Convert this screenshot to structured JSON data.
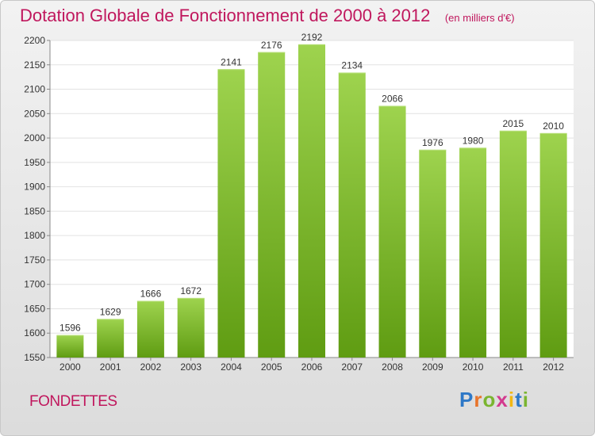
{
  "chart_data": {
    "type": "bar",
    "title": "Dotation Globale de Fonctionnement de 2000 à 2012",
    "unit_note": "(en milliers d'€)",
    "categories": [
      "2000",
      "2001",
      "2002",
      "2003",
      "2004",
      "2005",
      "2006",
      "2007",
      "2008",
      "2009",
      "2010",
      "2011",
      "2012"
    ],
    "values": [
      1596,
      1629,
      1666,
      1672,
      2141,
      2176,
      2192,
      2134,
      2066,
      1976,
      1980,
      2015,
      2010
    ],
    "ylim": [
      1550,
      2200
    ],
    "yticks": [
      1550,
      1600,
      1650,
      1700,
      1750,
      1800,
      1850,
      1900,
      1950,
      2000,
      2050,
      2100,
      2150,
      2200
    ],
    "grid": true,
    "bar_color": "#8cc43c",
    "bar_color_dark": "#5e9a14"
  },
  "footer": {
    "city": "FONDETTES",
    "logo_letters": [
      "P",
      "r",
      "o",
      "x",
      "i",
      "t",
      "i"
    ]
  }
}
